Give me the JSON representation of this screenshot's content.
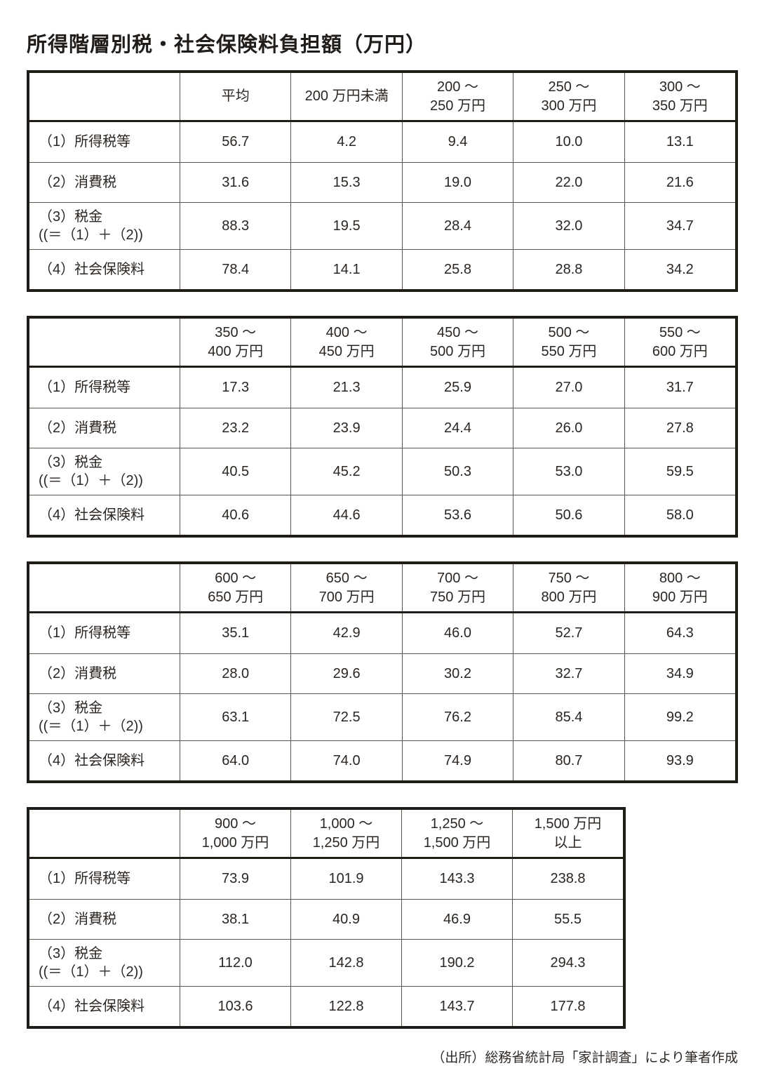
{
  "page": {
    "title": "所得階層別税・社会保険料負担額（万円）",
    "source": "（出所）総務省統計局「家計調査」により筆者作成"
  },
  "colors": {
    "text": "#2b2622",
    "border_heavy": "#201c18",
    "border_light": "#5a544e",
    "background": "#ffffff"
  },
  "row_labels": [
    {
      "lines": [
        "（1）所得税等"
      ]
    },
    {
      "lines": [
        "（2）消費税"
      ]
    },
    {
      "lines": [
        "（3）税金",
        "((＝（1）＋（2))"
      ]
    },
    {
      "lines": [
        "（4）社会保険料"
      ]
    }
  ],
  "tables": [
    {
      "column_headers": [
        {
          "lines": [
            "平均"
          ]
        },
        {
          "lines": [
            "200 万円未満"
          ]
        },
        {
          "lines": [
            "200 ～",
            "250 万円"
          ]
        },
        {
          "lines": [
            "250 ～",
            "300 万円"
          ]
        },
        {
          "lines": [
            "300 ～",
            "350 万円"
          ]
        }
      ],
      "rows": [
        [
          "56.7",
          "4.2",
          "9.4",
          "10.0",
          "13.1"
        ],
        [
          "31.6",
          "15.3",
          "19.0",
          "22.0",
          "21.6"
        ],
        [
          "88.3",
          "19.5",
          "28.4",
          "32.0",
          "34.7"
        ],
        [
          "78.4",
          "14.1",
          "25.8",
          "28.8",
          "34.2"
        ]
      ]
    },
    {
      "column_headers": [
        {
          "lines": [
            "350 ～",
            "400 万円"
          ]
        },
        {
          "lines": [
            "400 ～",
            "450 万円"
          ]
        },
        {
          "lines": [
            "450 ～",
            "500 万円"
          ]
        },
        {
          "lines": [
            "500 ～",
            "550 万円"
          ]
        },
        {
          "lines": [
            "550 ～",
            "600 万円"
          ]
        }
      ],
      "rows": [
        [
          "17.3",
          "21.3",
          "25.9",
          "27.0",
          "31.7"
        ],
        [
          "23.2",
          "23.9",
          "24.4",
          "26.0",
          "27.8"
        ],
        [
          "40.5",
          "45.2",
          "50.3",
          "53.0",
          "59.5"
        ],
        [
          "40.6",
          "44.6",
          "53.6",
          "50.6",
          "58.0"
        ]
      ]
    },
    {
      "column_headers": [
        {
          "lines": [
            "600 ～",
            "650 万円"
          ]
        },
        {
          "lines": [
            "650 ～",
            "700 万円"
          ]
        },
        {
          "lines": [
            "700 ～",
            "750 万円"
          ]
        },
        {
          "lines": [
            "750 ～",
            "800 万円"
          ]
        },
        {
          "lines": [
            "800 ～",
            "900 万円"
          ]
        }
      ],
      "rows": [
        [
          "35.1",
          "42.9",
          "46.0",
          "52.7",
          "64.3"
        ],
        [
          "28.0",
          "29.6",
          "30.2",
          "32.7",
          "34.9"
        ],
        [
          "63.1",
          "72.5",
          "76.2",
          "85.4",
          "99.2"
        ],
        [
          "64.0",
          "74.0",
          "74.9",
          "80.7",
          "93.9"
        ]
      ]
    },
    {
      "column_headers": [
        {
          "lines": [
            "900 ～",
            "1,000 万円"
          ]
        },
        {
          "lines": [
            "1,000 ～",
            "1,250 万円"
          ]
        },
        {
          "lines": [
            "1,250 ～",
            "1,500 万円"
          ]
        },
        {
          "lines": [
            "1,500 万円",
            "以上"
          ]
        }
      ],
      "rows": [
        [
          "73.9",
          "101.9",
          "143.3",
          "238.8"
        ],
        [
          "38.1",
          "40.9",
          "46.9",
          "55.5"
        ],
        [
          "112.0",
          "142.8",
          "190.2",
          "294.3"
        ],
        [
          "103.6",
          "122.8",
          "143.7",
          "177.8"
        ]
      ]
    }
  ]
}
